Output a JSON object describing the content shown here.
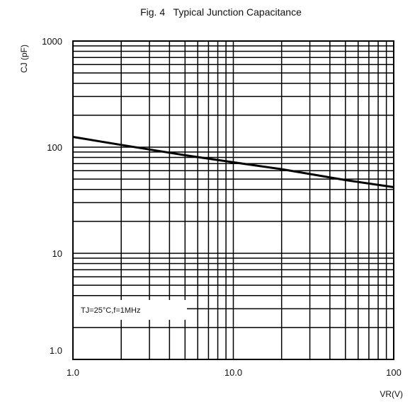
{
  "chart_data": {
    "type": "line",
    "title": "Fig. 4   Typical Junction Capacitance",
    "xlabel": "VR(V)",
    "ylabel": "CJ (pF)",
    "xscale": "log",
    "yscale": "log",
    "xlim": [
      1,
      100
    ],
    "ylim": [
      1,
      1000
    ],
    "x_ticks": [
      1,
      10,
      100
    ],
    "x_tick_labels": [
      "1.0",
      "10.0",
      "100"
    ],
    "y_ticks": [
      1,
      10,
      100,
      1000
    ],
    "y_tick_labels": [
      "1.0",
      "10",
      "100",
      "1000"
    ],
    "grid": true,
    "annotation": "TJ=25°C,f=1MHz",
    "series": [
      {
        "x": [
          1,
          2,
          5,
          10,
          20,
          50,
          100
        ],
        "y": [
          125,
          105,
          84,
          72,
          62,
          49,
          42
        ],
        "color": "#000000"
      }
    ]
  }
}
